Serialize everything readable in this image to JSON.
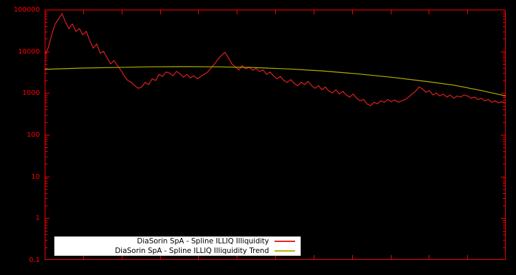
{
  "chart": {
    "background_color": "#000000",
    "axis_color": "#ff0000",
    "tick_label_color": "#ff0000",
    "legend": {
      "background_color": "#ffffff",
      "text_color": "#000000",
      "entries": [
        {
          "label": "DiaSorin SpA - Spline ILLIQ Illiquidity",
          "color": "#e62020"
        },
        {
          "label": "DiaSorin SpA - Spline ILLIQ Illiquidity Trend",
          "color": "#b5b500"
        }
      ]
    }
  },
  "chart_data": {
    "type": "line",
    "title": "",
    "xlabel": "",
    "ylabel": "",
    "y_scale": "log",
    "ylim": [
      0.1,
      100000
    ],
    "x_axis_labels_visible": false,
    "grid": false,
    "legend_position": "bottom-center",
    "yticks": [
      {
        "value": 100000,
        "label": "100000"
      },
      {
        "value": 10000,
        "label": "10000"
      },
      {
        "value": 1000,
        "label": "1000"
      },
      {
        "value": 100,
        "label": "100"
      },
      {
        "value": 10,
        "label": "10"
      },
      {
        "value": 1,
        "label": "1"
      },
      {
        "value": 0.1,
        "label": "0.1"
      }
    ],
    "xticks_interior_count": 11,
    "series": [
      {
        "name": "DiaSorin SpA - Spline ILLIQ Illiquidity",
        "color": "#e62020",
        "style": "jagged",
        "values": [
          8000,
          12000,
          25000,
          45000,
          60000,
          80000,
          50000,
          35000,
          45000,
          30000,
          35000,
          25000,
          30000,
          18000,
          12000,
          15000,
          9000,
          10000,
          7000,
          5000,
          6000,
          4500,
          3500,
          2500,
          2000,
          1800,
          1500,
          1300,
          1400,
          1800,
          1600,
          2200,
          2000,
          2800,
          2500,
          3200,
          3000,
          2600,
          3300,
          2900,
          2400,
          2800,
          2300,
          2600,
          2200,
          2500,
          2800,
          3200,
          4000,
          5000,
          6500,
          8000,
          9500,
          7000,
          5000,
          4200,
          3600,
          4500,
          3800,
          4200,
          3500,
          3900,
          3300,
          3600,
          2800,
          3200,
          2600,
          2200,
          2500,
          2000,
          1800,
          2100,
          1700,
          1500,
          1800,
          1600,
          1900,
          1500,
          1300,
          1500,
          1200,
          1400,
          1100,
          1000,
          1200,
          950,
          1100,
          900,
          800,
          950,
          750,
          650,
          700,
          550,
          500,
          600,
          550,
          650,
          600,
          700,
          620,
          680,
          600,
          650,
          700,
          800,
          950,
          1100,
          1400,
          1250,
          1050,
          1150,
          900,
          1000,
          850,
          950,
          800,
          900,
          750,
          850,
          800,
          900,
          850,
          750,
          800,
          700,
          750,
          650,
          700,
          600,
          650,
          580,
          620,
          560
        ]
      },
      {
        "name": "DiaSorin SpA - Spline ILLIQ Illiquidity Trend",
        "color": "#b5b500",
        "style": "smooth",
        "anchors": [
          {
            "i": 0,
            "v": 3700
          },
          {
            "i": 10,
            "v": 3950
          },
          {
            "i": 20,
            "v": 4100
          },
          {
            "i": 30,
            "v": 4250
          },
          {
            "i": 40,
            "v": 4300
          },
          {
            "i": 50,
            "v": 4250
          },
          {
            "i": 60,
            "v": 4100
          },
          {
            "i": 70,
            "v": 3800
          },
          {
            "i": 80,
            "v": 3400
          },
          {
            "i": 90,
            "v": 2900
          },
          {
            "i": 100,
            "v": 2400
          },
          {
            "i": 110,
            "v": 1900
          },
          {
            "i": 118,
            "v": 1550
          },
          {
            "i": 126,
            "v": 1150
          },
          {
            "i": 133,
            "v": 850
          }
        ]
      }
    ]
  }
}
